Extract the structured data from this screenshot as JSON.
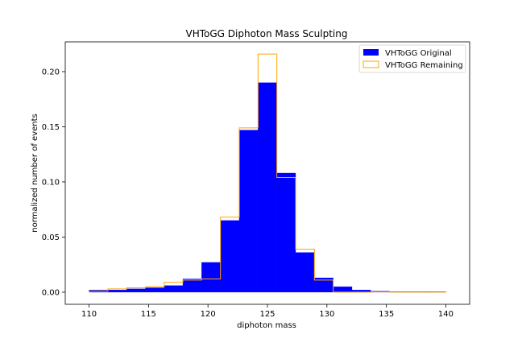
{
  "chart_data": {
    "type": "bar",
    "histtype": "stepfilled + step",
    "title": "VHToGG Diphoton Mass Sculpting",
    "xlabel": "diphoton mass",
    "ylabel": "normalized number of events",
    "xlim": [
      108,
      142
    ],
    "ylim": [
      -0.011,
      0.227
    ],
    "xticks": [
      110,
      115,
      120,
      125,
      130,
      135,
      140
    ],
    "xtick_labels": [
      "110",
      "115",
      "120",
      "125",
      "130",
      "135",
      "140"
    ],
    "yticks": [
      0.0,
      0.05,
      0.1,
      0.15,
      0.2
    ],
    "ytick_labels": [
      "0.00",
      "0.05",
      "0.10",
      "0.15",
      "0.20"
    ],
    "bin_edges": [
      110,
      111.58,
      113.16,
      114.74,
      116.32,
      117.89,
      119.47,
      121.05,
      122.63,
      124.21,
      125.79,
      127.37,
      128.95,
      130.53,
      132.11,
      133.68,
      135.26,
      136.84,
      138.42,
      140
    ],
    "legend_position": "top-right",
    "series": [
      {
        "name": "VHToGG Original",
        "style": "filled",
        "color": "#0000ff",
        "values": [
          0.002,
          0.002,
          0.003,
          0.004,
          0.006,
          0.012,
          0.027,
          0.065,
          0.147,
          0.19,
          0.108,
          0.036,
          0.013,
          0.005,
          0.002,
          0.001,
          0.0005,
          0.0005,
          0.0005
        ]
      },
      {
        "name": "VHToGG Remaining",
        "style": "step",
        "color": "#ffa500",
        "values": [
          0.001,
          0.003,
          0.004,
          0.005,
          0.009,
          0.011,
          0.012,
          0.068,
          0.149,
          0.216,
          0.104,
          0.039,
          0.011,
          0.0,
          0.0,
          0.0005,
          0.0,
          0.0,
          0.0
        ]
      }
    ]
  }
}
